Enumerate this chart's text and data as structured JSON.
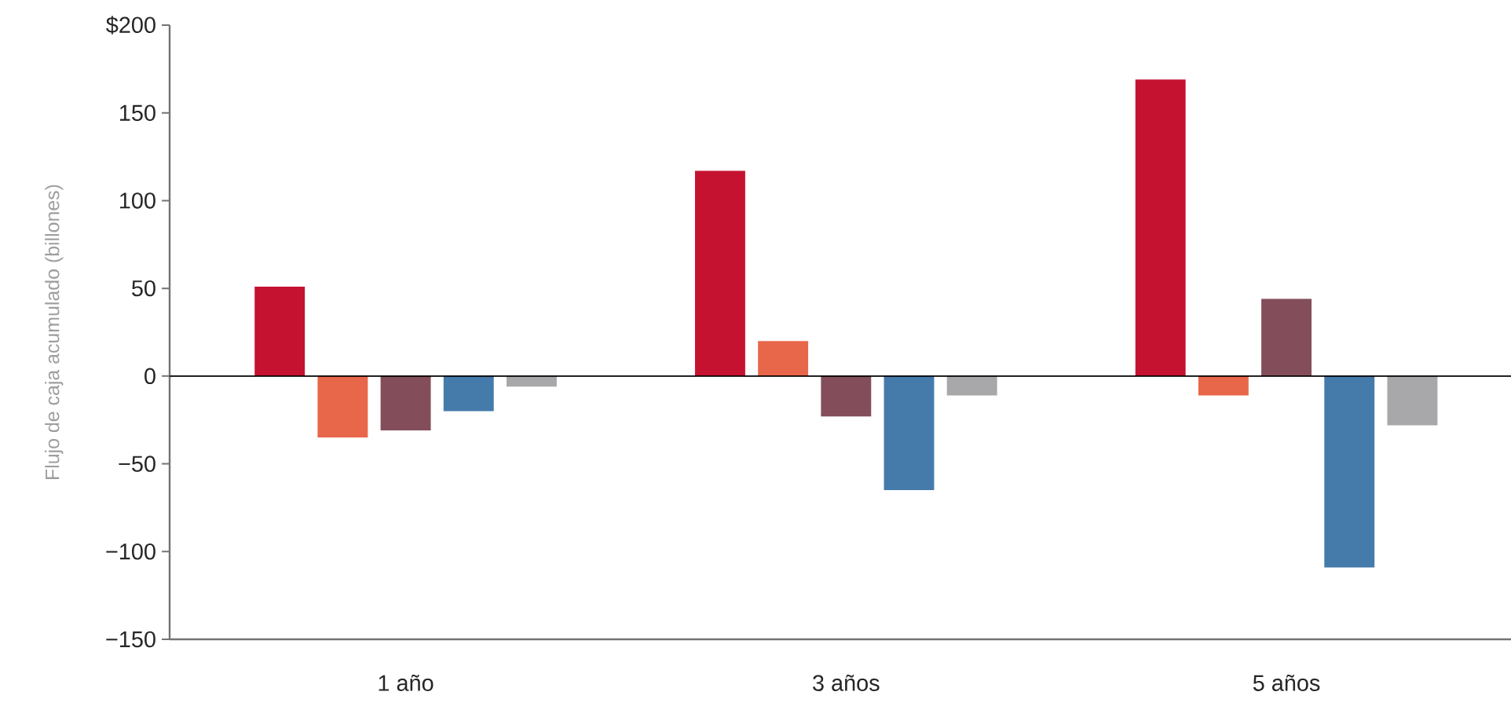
{
  "chart_data": {
    "type": "bar",
    "ylabel": "Flujo de caja acumulado (billones)",
    "categories": [
      "1 año",
      "3 años",
      "5 años"
    ],
    "series": [
      {
        "color": "#c41230",
        "values": [
          51,
          117,
          169
        ]
      },
      {
        "color": "#e8674a",
        "values": [
          -35,
          20,
          -11
        ]
      },
      {
        "color": "#834e5a",
        "values": [
          -31,
          -23,
          44
        ]
      },
      {
        "color": "#457bab",
        "values": [
          -20,
          -65,
          -109
        ]
      },
      {
        "color": "#a8a8aa",
        "values": [
          -6,
          -11,
          -28
        ]
      }
    ],
    "ylim": [
      -150,
      200
    ],
    "yticks": [
      {
        "value": -150,
        "label": "−150"
      },
      {
        "value": -100,
        "label": "−100"
      },
      {
        "value": -50,
        "label": "−50"
      },
      0,
      50,
      100,
      150,
      {
        "value": 200,
        "label": "$200"
      }
    ]
  }
}
